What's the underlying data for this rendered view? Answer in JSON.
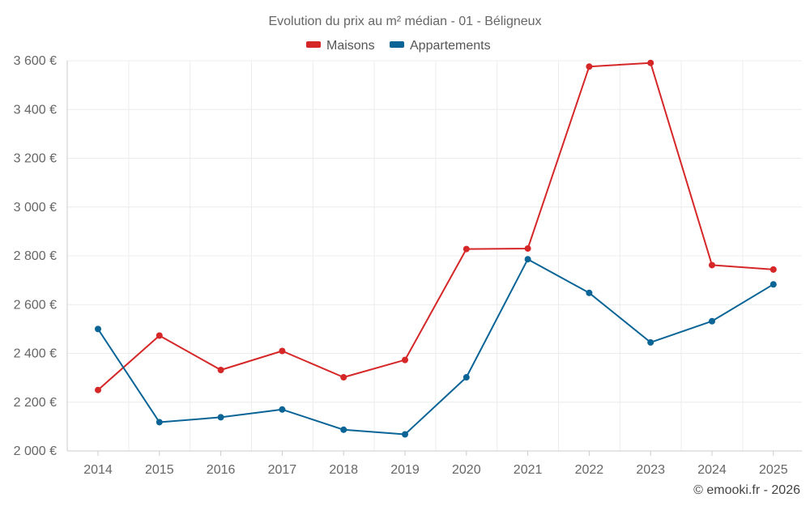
{
  "chart_data": {
    "type": "line",
    "title": "Evolution du prix au m² médian - 01 - Béligneux",
    "categories": [
      "2014",
      "2015",
      "2016",
      "2017",
      "2018",
      "2019",
      "2020",
      "2021",
      "2022",
      "2023",
      "2024",
      "2025"
    ],
    "series": [
      {
        "name": "Maisons",
        "color": "#d62728",
        "values": [
          2250,
          2473,
          2332,
          2410,
          2302,
          2373,
          2828,
          2830,
          3576,
          3591,
          2762,
          2744
        ]
      },
      {
        "name": "Appartements",
        "color": "#0a6496",
        "values": [
          2500,
          2118,
          2138,
          2170,
          2087,
          2068,
          2302,
          2786,
          2648,
          2445,
          2532,
          2683
        ]
      }
    ],
    "ylim": [
      2000,
      3600
    ],
    "yticks": [
      2000,
      2200,
      2400,
      2600,
      2800,
      3000,
      3200,
      3400,
      3600
    ],
    "ytick_labels": [
      "2 000 €",
      "2 200 €",
      "2 400 €",
      "2 600 €",
      "2 800 €",
      "3 000 €",
      "3 200 €",
      "3 400 €",
      "3 600 €"
    ],
    "xlabel": "",
    "ylabel": "",
    "grid": true,
    "legend": "top-center"
  },
  "credit": "© emooki.fr - 2026"
}
